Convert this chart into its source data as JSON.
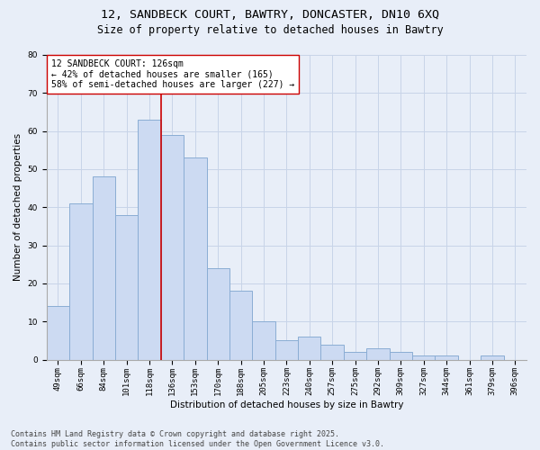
{
  "title_line1": "12, SANDBECK COURT, BAWTRY, DONCASTER, DN10 6XQ",
  "title_line2": "Size of property relative to detached houses in Bawtry",
  "xlabel": "Distribution of detached houses by size in Bawtry",
  "ylabel": "Number of detached properties",
  "categories": [
    "49sqm",
    "66sqm",
    "84sqm",
    "101sqm",
    "118sqm",
    "136sqm",
    "153sqm",
    "170sqm",
    "188sqm",
    "205sqm",
    "223sqm",
    "240sqm",
    "257sqm",
    "275sqm",
    "292sqm",
    "309sqm",
    "327sqm",
    "344sqm",
    "361sqm",
    "379sqm",
    "396sqm"
  ],
  "values": [
    14,
    41,
    48,
    38,
    63,
    59,
    53,
    24,
    18,
    10,
    5,
    6,
    4,
    2,
    3,
    2,
    1,
    1,
    0,
    1,
    0
  ],
  "bar_color": "#ccdaf2",
  "bar_edge_color": "#8aadd4",
  "ref_line_color": "#cc0000",
  "annotation_text": "12 SANDBECK COURT: 126sqm\n← 42% of detached houses are smaller (165)\n58% of semi-detached houses are larger (227) →",
  "annotation_box_color": "#ffffff",
  "annotation_box_edge": "#cc0000",
  "ylim": [
    0,
    80
  ],
  "yticks": [
    0,
    10,
    20,
    30,
    40,
    50,
    60,
    70,
    80
  ],
  "grid_color": "#c8d4e8",
  "background_color": "#e8eef8",
  "footer_text": "Contains HM Land Registry data © Crown copyright and database right 2025.\nContains public sector information licensed under the Open Government Licence v3.0.",
  "title_fontsize": 9.5,
  "subtitle_fontsize": 8.5,
  "axis_label_fontsize": 7.5,
  "tick_fontsize": 6.5,
  "annotation_fontsize": 7,
  "footer_fontsize": 6
}
